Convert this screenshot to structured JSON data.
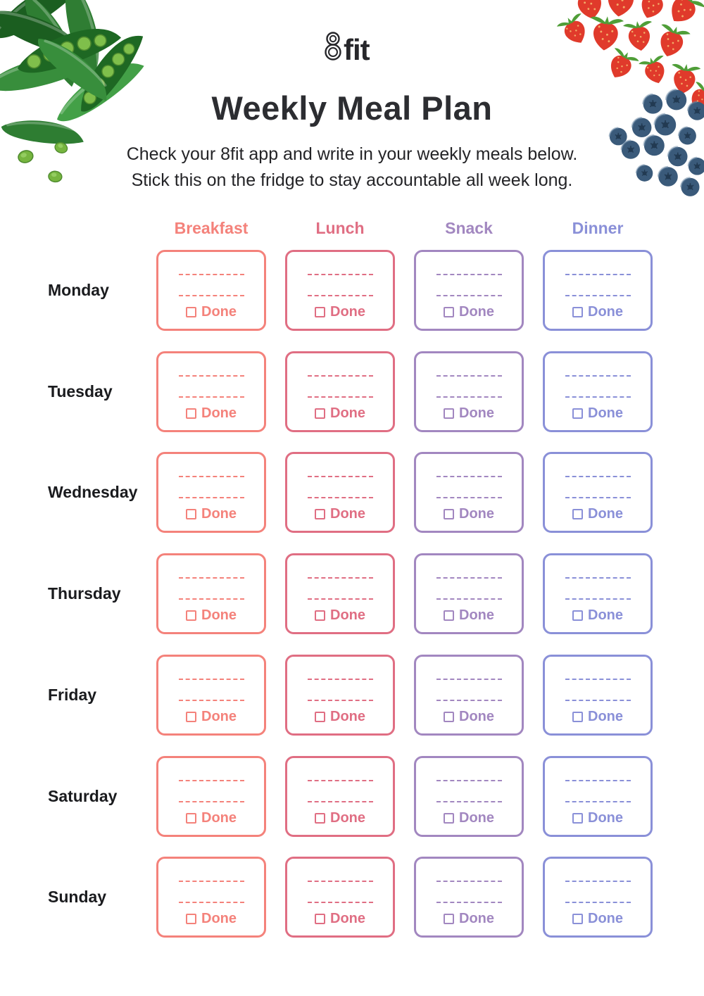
{
  "logo": {
    "text": "fit",
    "full_name": "8fit"
  },
  "header": {
    "title": "Weekly Meal Plan",
    "subtitle_line1": "Check your 8fit app and write in your weekly meals below.",
    "subtitle_line2": "Stick this on the fridge to stay accountable all week long."
  },
  "table": {
    "columns": [
      {
        "label": "Breakfast",
        "color": "#F4827B"
      },
      {
        "label": "Lunch",
        "color": "#E06E83"
      },
      {
        "label": "Snack",
        "color": "#A287C0"
      },
      {
        "label": "Dinner",
        "color": "#8A90D8"
      }
    ],
    "days": [
      "Monday",
      "Tuesday",
      "Wednesday",
      "Thursday",
      "Friday",
      "Saturday",
      "Sunday"
    ],
    "done_label": "Done"
  },
  "decorations": {
    "top_left": "green-pea-pods-photo",
    "top_right": "strawberries-and-blueberries-photo"
  },
  "colors": {
    "title_text": "#2c2d31",
    "body_text": "#242427",
    "day_text": "#1a1b1e",
    "logo_text": "#27272b"
  }
}
